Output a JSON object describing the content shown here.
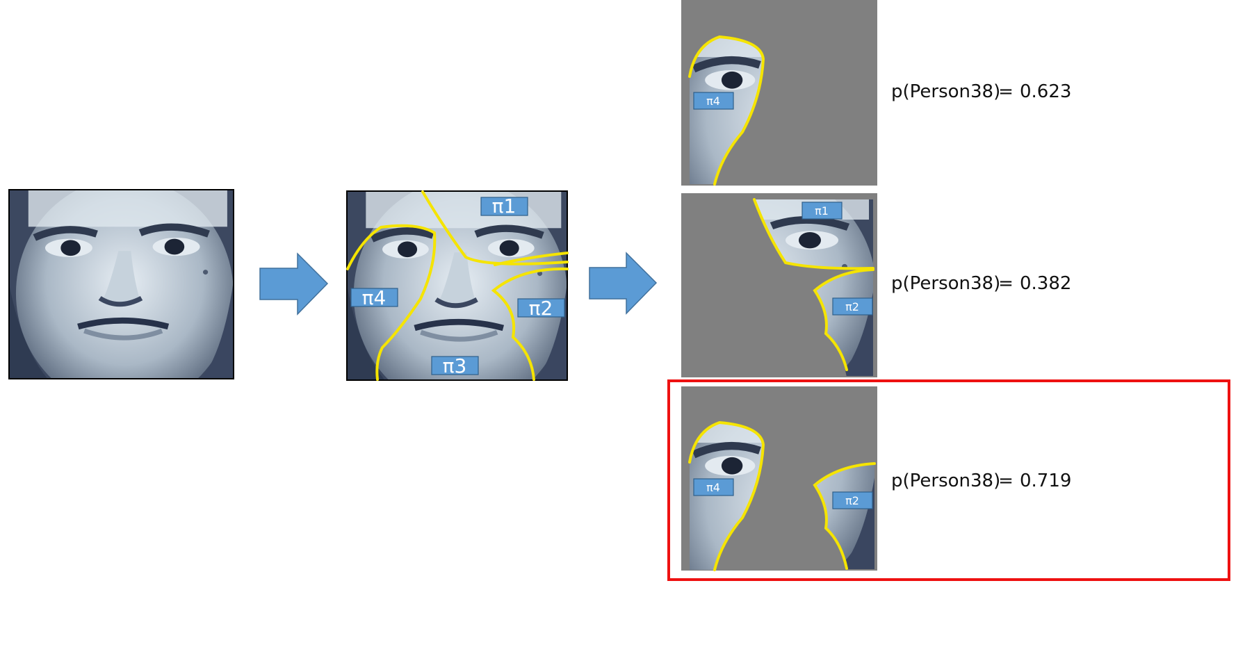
{
  "segment_labels": {
    "pi1": "π1",
    "pi2": "π2",
    "pi3": "π3",
    "pi4": "π4"
  },
  "results": [
    {
      "label": "p(Person38)",
      "equals": "=",
      "value": "0.623",
      "segments": [
        "π4"
      ]
    },
    {
      "label": "p(Person38)",
      "equals": "=",
      "value": "0.382",
      "segments": [
        "π1",
        "π2"
      ]
    },
    {
      "label": "p(Person38)",
      "equals": "=",
      "value": "0.719",
      "segments": [
        "π4",
        "π2"
      ],
      "highlighted": true
    }
  ],
  "colors": {
    "arrow": "#5b9bd5",
    "arrow_stroke": "#41719c",
    "label_box": "#5b9bd5",
    "label_box_stroke": "#2e5f8a",
    "segment_line": "#f5e400",
    "masked_background": "#808080",
    "highlight_box": "#ee1111"
  },
  "icons": [
    "face-photo",
    "arrow-right-icon"
  ]
}
